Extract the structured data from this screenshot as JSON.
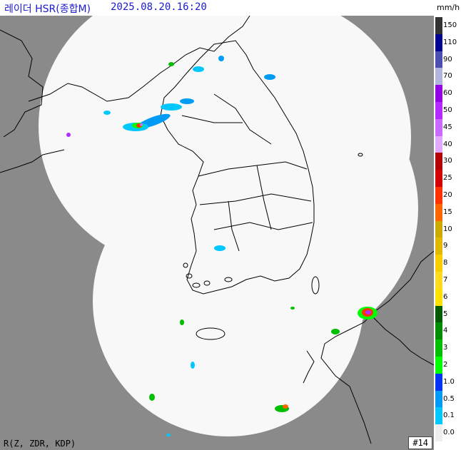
{
  "header": {
    "title": "레이더 HSR(종합M)",
    "timestamp": "2025.08.20.16:20"
  },
  "legend": {
    "unit": "mm/h",
    "bins": [
      {
        "label": "150",
        "color": "#333333"
      },
      {
        "label": "110",
        "color": "#000390"
      },
      {
        "label": "90",
        "color": "#4c4eb1"
      },
      {
        "label": "70",
        "color": "#b3b4de"
      },
      {
        "label": "60",
        "color": "#9300e4"
      },
      {
        "label": "50",
        "color": "#b329ff"
      },
      {
        "label": "45",
        "color": "#c969ff"
      },
      {
        "label": "40",
        "color": "#e0a9ff"
      },
      {
        "label": "30",
        "color": "#b40000"
      },
      {
        "label": "25",
        "color": "#d20000"
      },
      {
        "label": "20",
        "color": "#ff3200"
      },
      {
        "label": "15",
        "color": "#ff6600"
      },
      {
        "label": "10",
        "color": "#ccaa00"
      },
      {
        "label": "9",
        "color": "#e0b900"
      },
      {
        "label": "8",
        "color": "#f9cd00"
      },
      {
        "label": "7",
        "color": "#ffdc1f"
      },
      {
        "label": "6",
        "color": "#ffe100"
      },
      {
        "label": "5",
        "color": "#005a00"
      },
      {
        "label": "4",
        "color": "#008c00"
      },
      {
        "label": "3",
        "color": "#00be00"
      },
      {
        "label": "2",
        "color": "#00ff00"
      },
      {
        "label": "1.0",
        "color": "#0033f5"
      },
      {
        "label": "0.5",
        "color": "#009bf5"
      },
      {
        "label": "0.1",
        "color": "#00c8ff"
      },
      {
        "label": "0.0",
        "color": "#eeeeee"
      }
    ]
  },
  "footer": {
    "products": "R(Z, ZDR, KDP)",
    "frame": "#14"
  },
  "colors": {
    "outside_coverage": "#8a8a8a",
    "coverage": "#f8f8f8",
    "coastline": "#000000",
    "title_text": "#1a1ad0"
  }
}
